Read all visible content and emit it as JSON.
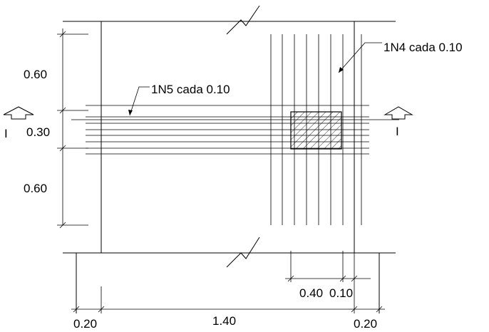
{
  "labels": {
    "rebar_vertical": "1N4 cada 0.10",
    "rebar_horizontal": "1N5 cada 0.10",
    "section_left": "I",
    "section_right": "I"
  },
  "dimensions": {
    "left_top": "0.60",
    "left_mid": "0.30",
    "left_bottom": "0.60",
    "bottom_left": "0.20",
    "bottom_mid": "1.40",
    "bottom_right": "0.20",
    "column_width": "0.40",
    "column_offset": "0.10"
  },
  "colors": {
    "line": "#000000",
    "background": "#ffffff"
  },
  "icons": {
    "section_marker": "section-arrow-up-icon",
    "break_mark": "break-line-icon",
    "column_hatch": "hatched-column-icon"
  }
}
